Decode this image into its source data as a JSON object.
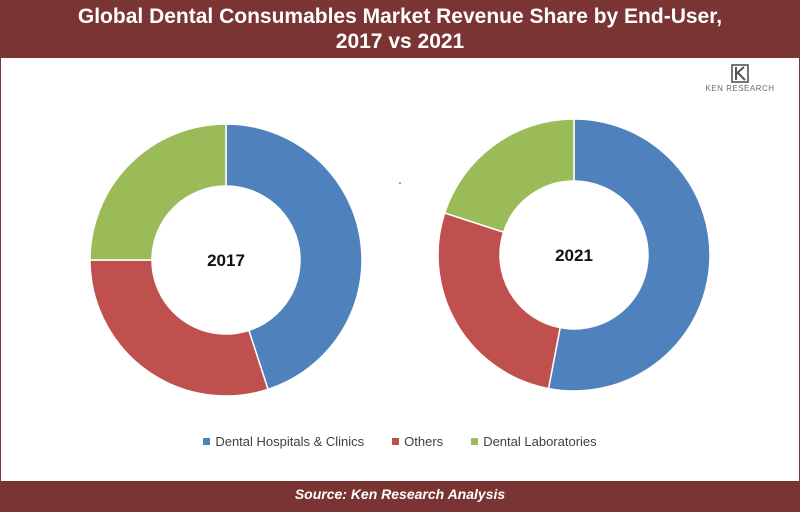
{
  "header": {
    "title_line1": "Global  Dental Consumables Market Revenue Share by End-User,",
    "title_line2": "2017 vs 2021"
  },
  "brand": {
    "name": "KEN RESEARCH",
    "logo_color": "#555555"
  },
  "colors": {
    "header_bg": "#7b3434",
    "series": [
      "#4f81bd",
      "#c0504d",
      "#9bbb59"
    ]
  },
  "chart_data": [
    {
      "type": "pie",
      "variant": "donut",
      "center_label": "2017",
      "categories": [
        "Dental Hospitals & Clinics",
        "Others",
        "Dental Laboratories"
      ],
      "values": [
        45,
        30,
        25
      ],
      "start_angle_deg": 0,
      "direction": "clockwise"
    },
    {
      "type": "pie",
      "variant": "donut",
      "center_label": "2021",
      "categories": [
        "Dental Hospitals & Clinics",
        "Others",
        "Dental Laboratories"
      ],
      "values": [
        53,
        27,
        20
      ],
      "start_angle_deg": 0,
      "direction": "clockwise"
    }
  ],
  "legend": {
    "placement": "bottom",
    "items": [
      {
        "label": "Dental Hospitals & Clinics",
        "color": "#4f81bd"
      },
      {
        "label": "Others",
        "color": "#c0504d"
      },
      {
        "label": "Dental Laboratories",
        "color": "#9bbb59"
      }
    ]
  },
  "footer": {
    "source": "Source: Ken Research Analysis"
  }
}
